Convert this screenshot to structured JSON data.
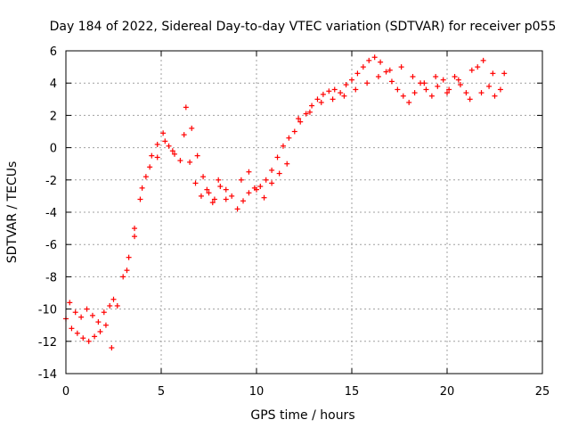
{
  "chart_data": {
    "type": "scatter",
    "title": "Day 184 of 2022, Sidereal Day-to-day VTEC variation (SDTVAR) for receiver p055",
    "xlabel": "GPS time / hours",
    "ylabel": "SDTVAR / TECUs",
    "xlim": [
      0,
      25
    ],
    "ylim": [
      -14,
      6
    ],
    "x_ticks": [
      0,
      5,
      10,
      15,
      20,
      25
    ],
    "y_ticks": [
      -14,
      -12,
      -10,
      -8,
      -6,
      -4,
      -2,
      0,
      2,
      4,
      6
    ],
    "grid": true,
    "marker": "+",
    "color": "#ff0000",
    "series": [
      {
        "name": "p055 SDTVAR",
        "x": [
          0.0,
          0.3,
          0.6,
          0.9,
          1.2,
          1.5,
          1.8,
          2.1,
          2.4,
          2.7,
          3.0,
          3.3,
          3.6,
          3.9,
          4.2,
          4.5,
          4.8,
          5.1,
          5.4,
          5.7,
          6.0,
          6.3,
          6.6,
          6.9,
          7.2,
          7.5,
          7.8,
          8.1,
          8.4,
          8.7,
          9.0,
          9.3,
          9.6,
          9.9,
          10.2,
          10.5,
          10.8,
          11.1,
          11.4,
          11.7,
          12.0,
          12.3,
          12.6,
          12.9,
          13.2,
          13.5,
          13.8,
          14.1,
          14.4,
          14.7,
          15.0,
          15.3,
          15.6,
          15.9,
          16.2,
          16.5,
          16.8,
          17.1,
          17.4,
          17.7,
          18.0,
          18.3,
          18.6,
          18.9,
          19.2,
          19.5,
          19.8,
          20.1,
          20.4,
          20.7,
          21.0,
          21.3,
          21.6,
          21.9,
          22.2,
          22.5,
          22.8,
          0.2,
          0.5,
          0.8,
          1.1,
          1.4,
          1.7,
          2.0,
          2.3,
          2.5,
          3.2,
          3.6,
          4.0,
          4.4,
          4.8,
          5.2,
          5.6,
          6.2,
          6.5,
          6.8,
          7.1,
          7.4,
          7.7,
          8.0,
          8.4,
          9.2,
          9.6,
          10.0,
          10.4,
          10.8,
          11.2,
          11.6,
          12.2,
          12.8,
          13.4,
          14.0,
          14.6,
          15.2,
          15.8,
          16.4,
          17.0,
          17.6,
          18.2,
          18.8,
          19.4,
          20.0,
          20.6,
          21.2,
          21.8,
          22.4,
          23.0
        ],
        "y": [
          -10.6,
          -11.2,
          -11.5,
          -11.8,
          -12.0,
          -11.7,
          -11.4,
          -11.0,
          -12.4,
          -9.8,
          -8.0,
          -6.8,
          -5.0,
          -3.2,
          -1.8,
          -0.5,
          0.2,
          0.9,
          0.1,
          -0.4,
          -0.8,
          2.5,
          1.2,
          -0.5,
          -1.8,
          -2.8,
          -3.2,
          -2.4,
          -2.6,
          -3.0,
          -3.8,
          -3.3,
          -2.8,
          -2.5,
          -2.4,
          -2.0,
          -1.4,
          -0.6,
          0.1,
          0.6,
          1.0,
          1.6,
          2.1,
          2.6,
          3.0,
          3.3,
          3.5,
          3.6,
          3.4,
          3.9,
          4.2,
          4.6,
          5.0,
          5.4,
          5.6,
          5.3,
          4.7,
          4.1,
          3.6,
          3.2,
          2.8,
          3.4,
          4.0,
          3.6,
          3.2,
          3.8,
          4.2,
          3.6,
          4.4,
          3.9,
          3.4,
          4.8,
          5.0,
          5.4,
          3.8,
          3.2,
          3.6,
          -9.6,
          -10.2,
          -10.5,
          -10.0,
          -10.4,
          -10.8,
          -10.2,
          -9.8,
          -9.4,
          -7.6,
          -5.5,
          -2.5,
          -1.2,
          -0.6,
          0.4,
          -0.2,
          0.8,
          -0.9,
          -2.2,
          -3.0,
          -2.6,
          -3.4,
          -2.0,
          -3.2,
          -2.0,
          -1.5,
          -2.6,
          -3.1,
          -2.2,
          -1.6,
          -1.0,
          1.8,
          2.2,
          2.8,
          3.0,
          3.2,
          3.6,
          4.0,
          4.4,
          4.8,
          5.0,
          4.4,
          4.0,
          4.4,
          3.4,
          4.2,
          3.0,
          3.4,
          4.6,
          4.6
        ]
      }
    ]
  }
}
